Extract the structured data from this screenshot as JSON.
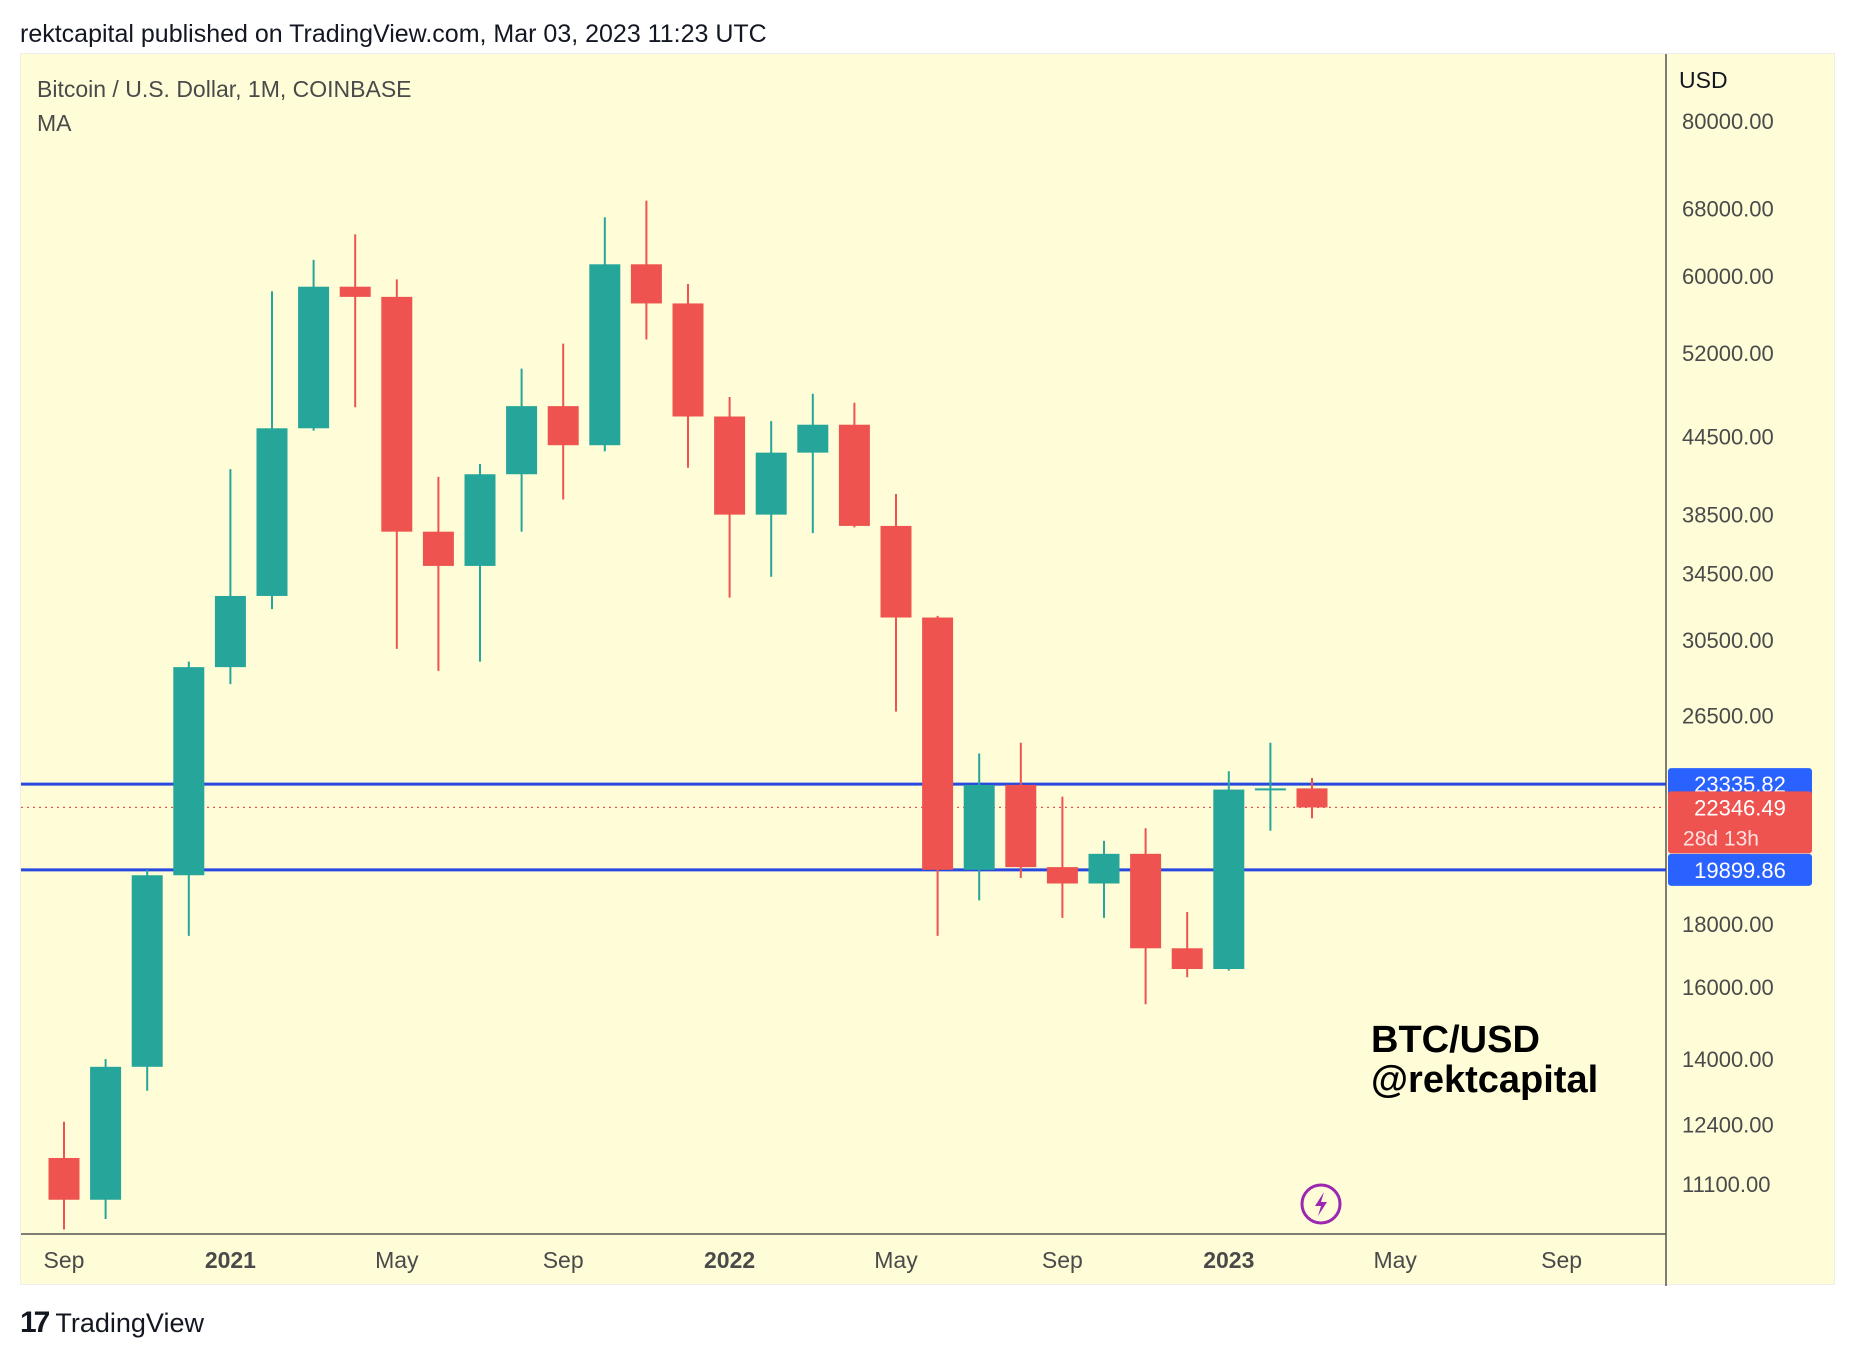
{
  "header": {
    "publisher_line": "rektcapital published on TradingView.com, Mar 03, 2023 11:23 UTC"
  },
  "footer": {
    "brand_mark": "17",
    "brand_name": "TradingView"
  },
  "colors": {
    "background": "#fefdd8",
    "bullish": "#26a69a",
    "bearish": "#ef5350",
    "support_resistance_line": "#2948e0",
    "price_tag_blue": "#2962ff",
    "price_tag_red": "#ef5350",
    "text_primary": "#131722",
    "text_axis": "#4a4a4a",
    "flash_icon": "#9c27b0"
  },
  "chart_data": {
    "type": "candlestick",
    "symbol_line": "Bitcoin / U.S. Dollar, 1M, COINBASE",
    "indicator_line": "MA",
    "scale": "log",
    "axis_currency": "USD",
    "y_ticks": [
      80000.0,
      68000.0,
      60000.0,
      52000.0,
      44500.0,
      38500.0,
      34500.0,
      30500.0,
      26500.0,
      18000.0,
      16000.0,
      14000.0,
      12400.0,
      11100.0
    ],
    "y_tick_labels": [
      "80000.00",
      "68000.00",
      "60000.00",
      "52000.00",
      "44500.00",
      "38500.00",
      "34500.00",
      "30500.00",
      "26500.00",
      "18000.00",
      "16000.00",
      "14000.00",
      "12400.00",
      "11100.00"
    ],
    "x_ticks": [
      {
        "label": "Sep",
        "date": "2020-09",
        "bold": false
      },
      {
        "label": "2021",
        "date": "2021-01",
        "bold": true
      },
      {
        "label": "May",
        "date": "2021-05",
        "bold": false
      },
      {
        "label": "Sep",
        "date": "2021-09",
        "bold": false
      },
      {
        "label": "2022",
        "date": "2022-01",
        "bold": true
      },
      {
        "label": "May",
        "date": "2022-05",
        "bold": false
      },
      {
        "label": "Sep",
        "date": "2022-09",
        "bold": false
      },
      {
        "label": "2023",
        "date": "2023-01",
        "bold": true
      },
      {
        "label": "May",
        "date": "2023-05",
        "bold": false
      },
      {
        "label": "Sep",
        "date": "2023-09",
        "bold": false
      }
    ],
    "candles": [
      {
        "date": "2020-09",
        "open": 11650,
        "high": 12460,
        "low": 10200,
        "close": 10780
      },
      {
        "date": "2020-10",
        "open": 10780,
        "high": 14000,
        "low": 10400,
        "close": 13800
      },
      {
        "date": "2020-11",
        "open": 13800,
        "high": 19900,
        "low": 13200,
        "close": 19700
      },
      {
        "date": "2020-12",
        "open": 19700,
        "high": 29300,
        "low": 17600,
        "close": 29000
      },
      {
        "date": "2021-01",
        "open": 29000,
        "high": 41900,
        "low": 28100,
        "close": 33100
      },
      {
        "date": "2021-02",
        "open": 33100,
        "high": 58300,
        "low": 32300,
        "close": 45200
      },
      {
        "date": "2021-03",
        "open": 45200,
        "high": 61800,
        "low": 45000,
        "close": 58800
      },
      {
        "date": "2021-04",
        "open": 58800,
        "high": 64800,
        "low": 47000,
        "close": 57700
      },
      {
        "date": "2021-05",
        "open": 57700,
        "high": 59600,
        "low": 30000,
        "close": 37300
      },
      {
        "date": "2021-06",
        "open": 37300,
        "high": 41300,
        "low": 28800,
        "close": 35000
      },
      {
        "date": "2021-07",
        "open": 35000,
        "high": 42300,
        "low": 29300,
        "close": 41500
      },
      {
        "date": "2021-08",
        "open": 41500,
        "high": 50500,
        "low": 37300,
        "close": 47100
      },
      {
        "date": "2021-09",
        "open": 47100,
        "high": 52900,
        "low": 39600,
        "close": 43800
      },
      {
        "date": "2021-10",
        "open": 43800,
        "high": 66900,
        "low": 43300,
        "close": 61300
      },
      {
        "date": "2021-11",
        "open": 61300,
        "high": 69000,
        "low": 53300,
        "close": 57000
      },
      {
        "date": "2021-12",
        "open": 57000,
        "high": 59100,
        "low": 42000,
        "close": 46200
      },
      {
        "date": "2022-01",
        "open": 46200,
        "high": 47900,
        "low": 33000,
        "close": 38500
      },
      {
        "date": "2022-02",
        "open": 38500,
        "high": 45800,
        "low": 34300,
        "close": 43200
      },
      {
        "date": "2022-03",
        "open": 43200,
        "high": 48200,
        "low": 37200,
        "close": 45500
      },
      {
        "date": "2022-04",
        "open": 45500,
        "high": 47400,
        "low": 37600,
        "close": 37700
      },
      {
        "date": "2022-05",
        "open": 37700,
        "high": 40000,
        "low": 26700,
        "close": 31800
      },
      {
        "date": "2022-06",
        "open": 31800,
        "high": 31900,
        "low": 17600,
        "close": 19900
      },
      {
        "date": "2022-07",
        "open": 19900,
        "high": 24700,
        "low": 18800,
        "close": 23300
      },
      {
        "date": "2022-08",
        "open": 23300,
        "high": 25200,
        "low": 19600,
        "close": 20000
      },
      {
        "date": "2022-09",
        "open": 20000,
        "high": 22800,
        "low": 18200,
        "close": 19400
      },
      {
        "date": "2022-10",
        "open": 19400,
        "high": 21000,
        "low": 18200,
        "close": 20500
      },
      {
        "date": "2022-11",
        "open": 20500,
        "high": 21500,
        "low": 15500,
        "close": 17200
      },
      {
        "date": "2022-12",
        "open": 17200,
        "high": 18400,
        "low": 16300,
        "close": 16550
      },
      {
        "date": "2023-01",
        "open": 16550,
        "high": 23900,
        "low": 16500,
        "close": 23100
      },
      {
        "date": "2023-02",
        "open": 23100,
        "high": 25200,
        "low": 21400,
        "close": 23150
      },
      {
        "date": "2023-03",
        "open": 23150,
        "high": 23600,
        "low": 21900,
        "close": 22346
      }
    ],
    "horizontal_lines": [
      {
        "value": 23335.82,
        "label": "23335.82"
      },
      {
        "value": 19899.86,
        "label": "19899.86"
      }
    ],
    "current_price": {
      "value": 22346.49,
      "label": "22346.49",
      "countdown": "28d 13h"
    },
    "annotation": {
      "line1": "BTC/USD",
      "line2": "@rektcapital"
    },
    "grid": false
  }
}
